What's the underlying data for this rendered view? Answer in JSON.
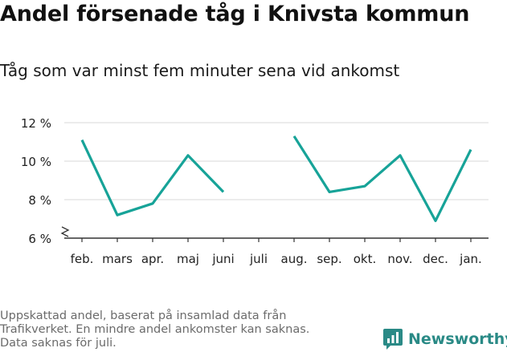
{
  "title": "Andel försenade tåg i Knivsta kommun",
  "subtitle": "Tåg som var minst fem minuter sena vid ankomst",
  "footnote": [
    "Uppskattad andel, baserat på insamlad data från",
    "Trafikverket. En mindre andel ankomster kan saknas.",
    "Data saknas för juli."
  ],
  "brand": {
    "name": "Newsworthy",
    "icon": "newsworthy-logo-icon"
  },
  "colors": {
    "line": "#17a398",
    "grid": "#d9d9d9",
    "axis": "#333333",
    "brand": "#2a8a86"
  },
  "chart_data": {
    "type": "line",
    "categories": [
      "feb.",
      "mars",
      "apr.",
      "maj",
      "juni",
      "juli",
      "aug.",
      "sep.",
      "okt.",
      "nov.",
      "dec.",
      "jan."
    ],
    "series": [
      {
        "values": [
          11.1,
          7.2,
          7.8,
          10.3,
          8.4,
          null,
          11.3,
          8.4,
          8.7,
          10.3,
          6.9,
          10.6
        ]
      }
    ],
    "ylim": [
      6,
      12
    ],
    "yticks": [
      6,
      8,
      10,
      12
    ],
    "ytick_labels": [
      "6 %",
      "8 %",
      "10 %",
      "12 %"
    ],
    "y_axis_break": true,
    "grid": true,
    "xlabel": "",
    "ylabel": ""
  }
}
